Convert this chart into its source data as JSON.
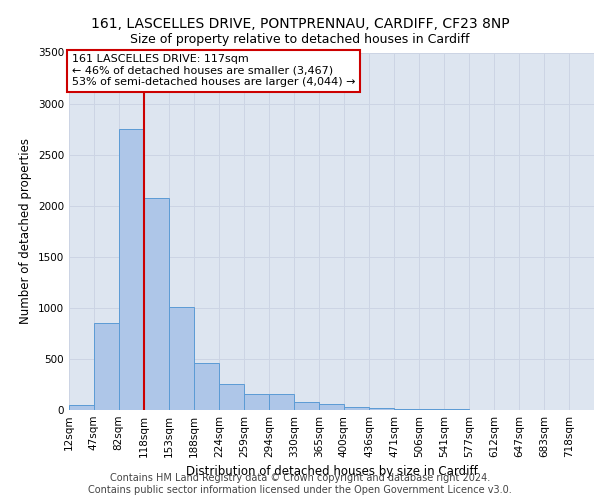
{
  "title1": "161, LASCELLES DRIVE, PONTPRENNAU, CARDIFF, CF23 8NP",
  "title2": "Size of property relative to detached houses in Cardiff",
  "xlabel": "Distribution of detached houses by size in Cardiff",
  "ylabel": "Number of detached properties",
  "bin_labels": [
    "12sqm",
    "47sqm",
    "82sqm",
    "118sqm",
    "153sqm",
    "188sqm",
    "224sqm",
    "259sqm",
    "294sqm",
    "330sqm",
    "365sqm",
    "400sqm",
    "436sqm",
    "471sqm",
    "506sqm",
    "541sqm",
    "577sqm",
    "612sqm",
    "647sqm",
    "683sqm",
    "718sqm"
  ],
  "bin_edges": [
    12,
    47,
    82,
    118,
    153,
    188,
    224,
    259,
    294,
    330,
    365,
    400,
    436,
    471,
    506,
    541,
    577,
    612,
    647,
    683,
    718
  ],
  "bar_heights": [
    50,
    850,
    2750,
    2075,
    1010,
    460,
    250,
    160,
    155,
    75,
    55,
    30,
    15,
    10,
    5,
    5,
    3,
    2,
    1,
    1
  ],
  "bar_color": "#aec6e8",
  "bar_edge_color": "#5b9bd5",
  "property_line_x": 118,
  "property_line_color": "#cc0000",
  "annotation_line1": "161 LASCELLES DRIVE: 117sqm",
  "annotation_line2": "← 46% of detached houses are smaller (3,467)",
  "annotation_line3": "53% of semi-detached houses are larger (4,044) →",
  "annotation_box_color": "#ffffff",
  "annotation_box_edge": "#cc0000",
  "ylim": [
    0,
    3500
  ],
  "yticks": [
    0,
    500,
    1000,
    1500,
    2000,
    2500,
    3000,
    3500
  ],
  "grid_color": "#ccd4e4",
  "bg_color": "#dde5f0",
  "footnote": "Contains HM Land Registry data © Crown copyright and database right 2024.\nContains public sector information licensed under the Open Government Licence v3.0.",
  "title1_fontsize": 10,
  "title2_fontsize": 9,
  "xlabel_fontsize": 8.5,
  "ylabel_fontsize": 8.5,
  "tick_fontsize": 7.5,
  "annot_fontsize": 8,
  "footnote_fontsize": 7
}
